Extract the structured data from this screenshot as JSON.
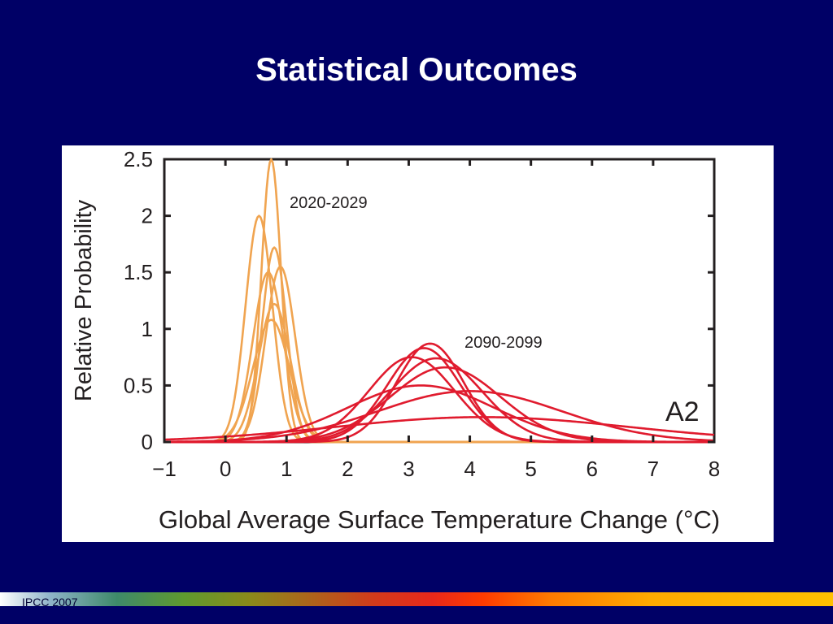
{
  "slide": {
    "title": "Statistical Outcomes",
    "footer": "IPCC 2007"
  },
  "colors": {
    "background": "#000066",
    "early_period": "#f0a450",
    "late_period": "#e01b2e",
    "axis": "#231f20"
  },
  "chart_data": {
    "type": "line",
    "title": "",
    "xlabel": "Global Average Surface Temperature Change (°C)",
    "ylabel": "Relative Probability",
    "xlim": [
      -1,
      8
    ],
    "ylim": [
      0,
      2.5
    ],
    "xticks": [
      -1,
      0,
      1,
      2,
      3,
      4,
      5,
      6,
      7,
      8
    ],
    "xtick_labels": [
      "−1",
      "0",
      "1",
      "2",
      "3",
      "4",
      "5",
      "6",
      "7",
      "8"
    ],
    "yticks": [
      0,
      0.5,
      1,
      1.5,
      2,
      2.5
    ],
    "ytick_labels": [
      "0",
      "0.5",
      "1",
      "1.5",
      "2",
      "2.5"
    ],
    "grid": false,
    "annotations": [
      {
        "text": "2020-2029",
        "x": 1.1,
        "y": 2.1
      },
      {
        "text": "2090-2099",
        "x": 3.9,
        "y": 0.85
      },
      {
        "text": "A2",
        "x": 7.5,
        "y": 0.26
      }
    ],
    "groups": [
      {
        "label": "2020-2029",
        "color": "#f0a450",
        "series": [
          {
            "mu": 0.75,
            "sigma": 0.16,
            "peak": 2.5
          },
          {
            "mu": 0.55,
            "sigma": 0.22,
            "peak": 2.0
          },
          {
            "mu": 0.8,
            "sigma": 0.2,
            "peak": 1.72
          },
          {
            "mu": 0.9,
            "sigma": 0.24,
            "peak": 1.55
          },
          {
            "mu": 0.7,
            "sigma": 0.25,
            "peak": 1.5
          },
          {
            "mu": 0.8,
            "sigma": 0.26,
            "peak": 1.22
          },
          {
            "mu": 0.75,
            "sigma": 0.3,
            "peak": 1.08
          }
        ]
      },
      {
        "label": "2090-2099",
        "color": "#e01b2e",
        "series": [
          {
            "mu": 3.35,
            "sigma": 0.55,
            "peak": 0.87
          },
          {
            "mu": 3.25,
            "sigma": 0.6,
            "peak": 0.83
          },
          {
            "mu": 3.05,
            "sigma": 0.7,
            "peak": 0.75
          },
          {
            "mu": 3.45,
            "sigma": 0.75,
            "peak": 0.74
          },
          {
            "mu": 3.6,
            "sigma": 0.9,
            "peak": 0.66
          },
          {
            "mu": 3.2,
            "sigma": 1.2,
            "peak": 0.5
          },
          {
            "mu": 4.0,
            "sigma": 1.5,
            "peak": 0.45
          },
          {
            "mu": 4.2,
            "sigma": 2.4,
            "peak": 0.22
          }
        ]
      }
    ]
  }
}
